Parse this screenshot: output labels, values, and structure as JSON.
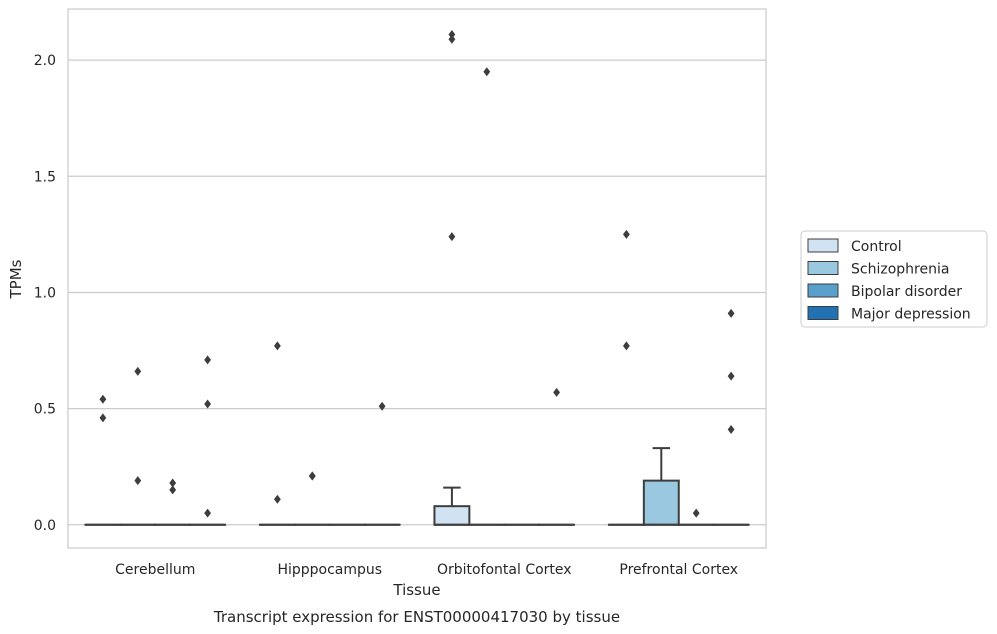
{
  "chart_data": {
    "type": "box",
    "title": "",
    "caption": "Transcript expression for ENST00000417030 by tissue",
    "xlabel": "Tissue",
    "ylabel": "TPMs",
    "ylim": [
      -0.1,
      2.22
    ],
    "yticks": [
      0.0,
      0.5,
      1.0,
      1.5,
      2.0
    ],
    "ytick_labels": [
      "0.0",
      "0.5",
      "1.0",
      "1.5",
      "2.0"
    ],
    "grid": "horizontal",
    "legend_position": "right",
    "categories": [
      "Cerebellum",
      "Hipppocampus",
      "Orbitofontal Cortex",
      "Prefrontal Cortex"
    ],
    "series": [
      {
        "name": "Control",
        "color": "#d1e2f2",
        "boxes": [
          {
            "q1": 0,
            "median": 0,
            "q3": 0,
            "whisker_low": 0,
            "whisker_high": 0,
            "outliers": [
              0.54,
              0.46
            ]
          },
          {
            "q1": 0,
            "median": 0,
            "q3": 0,
            "whisker_low": 0,
            "whisker_high": 0,
            "outliers": [
              0.77,
              0.11
            ]
          },
          {
            "q1": 0,
            "median": 0,
            "q3": 0.08,
            "whisker_low": 0,
            "whisker_high": 0.16,
            "outliers": [
              2.11,
              2.09,
              1.24
            ]
          },
          {
            "q1": 0,
            "median": 0,
            "q3": 0,
            "whisker_low": 0,
            "whisker_high": 0,
            "outliers": [
              1.25,
              0.77
            ]
          }
        ]
      },
      {
        "name": "Schizophrenia",
        "color": "#9ac8e0",
        "boxes": [
          {
            "q1": 0,
            "median": 0,
            "q3": 0,
            "whisker_low": 0,
            "whisker_high": 0,
            "outliers": [
              0.66,
              0.19
            ]
          },
          {
            "q1": 0,
            "median": 0,
            "q3": 0,
            "whisker_low": 0,
            "whisker_high": 0,
            "outliers": [
              0.21,
              0.21
            ]
          },
          {
            "q1": 0,
            "median": 0,
            "q3": 0,
            "whisker_low": 0,
            "whisker_high": 0,
            "outliers": [
              1.95
            ]
          },
          {
            "q1": 0,
            "median": 0,
            "q3": 0.19,
            "whisker_low": 0,
            "whisker_high": 0.33,
            "outliers": []
          }
        ]
      },
      {
        "name": "Bipolar disorder",
        "color": "#5aa0cd",
        "boxes": [
          {
            "q1": 0,
            "median": 0,
            "q3": 0,
            "whisker_low": 0,
            "whisker_high": 0,
            "outliers": [
              0.18,
              0.15
            ]
          },
          {
            "q1": 0,
            "median": 0,
            "q3": 0,
            "whisker_low": 0,
            "whisker_high": 0,
            "outliers": []
          },
          {
            "q1": 0,
            "median": 0,
            "q3": 0,
            "whisker_low": 0,
            "whisker_high": 0,
            "outliers": []
          },
          {
            "q1": 0,
            "median": 0,
            "q3": 0,
            "whisker_low": 0,
            "whisker_high": 0,
            "outliers": [
              0.05
            ]
          }
        ]
      },
      {
        "name": "Major depression",
        "color": "#2271b5",
        "boxes": [
          {
            "q1": 0,
            "median": 0,
            "q3": 0,
            "whisker_low": 0,
            "whisker_high": 0,
            "outliers": [
              0.71,
              0.52,
              0.05
            ]
          },
          {
            "q1": 0,
            "median": 0,
            "q3": 0,
            "whisker_low": 0,
            "whisker_high": 0,
            "outliers": [
              0.51
            ]
          },
          {
            "q1": 0,
            "median": 0,
            "q3": 0,
            "whisker_low": 0,
            "whisker_high": 0,
            "outliers": [
              0.57
            ]
          },
          {
            "q1": 0,
            "median": 0,
            "q3": 0,
            "whisker_low": 0,
            "whisker_high": 0,
            "outliers": [
              0.91,
              0.64,
              0.41
            ]
          }
        ]
      }
    ]
  }
}
